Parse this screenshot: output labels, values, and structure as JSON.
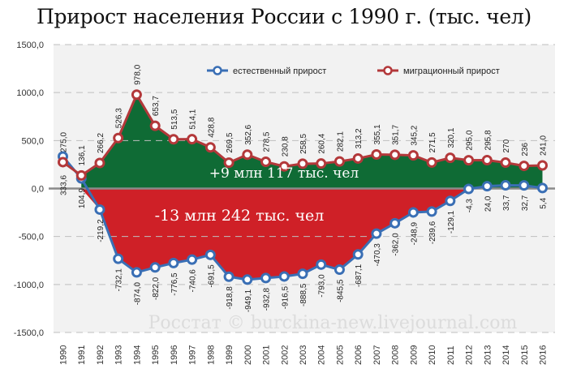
{
  "title": "Прирост населения России с 1990 г. (тыс. чел)",
  "watermark": "Росстат © burckina-new.livejournal.com",
  "annotations": {
    "positive": "+9 млн 117 тыс. чел",
    "negative": "-13 млн 242 тыс. чел"
  },
  "legend": {
    "natural": "естественный прирост",
    "migration": "миграционный прирост"
  },
  "colors": {
    "natural_line": "#3a6fb5",
    "migration_line": "#b3383a",
    "positive_fill": "#0f6b35",
    "negative_fill": "#cf2027",
    "plot_bg": "#f2f2f2",
    "grid": "#bfbfbf"
  },
  "chart_data": {
    "type": "line",
    "title": "Прирост населения России с 1990 г. (тыс. чел)",
    "xlabel": "",
    "ylabel": "",
    "ylim": [
      -1500,
      1500
    ],
    "yticks": [
      "1500,0",
      "1000,0",
      "500,0",
      "0,0",
      "-500,0",
      "-1000,0",
      "-1500,0"
    ],
    "ytick_values": [
      1500,
      1000,
      500,
      0,
      -500,
      -1000,
      -1500
    ],
    "grid": true,
    "legend_position": "top-right",
    "categories": [
      "1990",
      "1991",
      "1992",
      "1993",
      "1994",
      "1995",
      "1996",
      "1997",
      "1998",
      "1999",
      "2000",
      "2001",
      "2002",
      "2003",
      "2004",
      "2005",
      "2006",
      "2007",
      "2008",
      "2009",
      "2010",
      "2011",
      "2012",
      "2013",
      "2014",
      "2015",
      "2016"
    ],
    "series": [
      {
        "name": "естественный прирост",
        "values": [
          333.6,
          104.9,
          -219.2,
          -732.1,
          -874.0,
          -822.0,
          -776.5,
          -740.6,
          -691.5,
          -918.8,
          -949.1,
          -932.8,
          -916.5,
          -888.5,
          -793.0,
          -845.5,
          -687.1,
          -470.3,
          -362.0,
          -248.9,
          -239.6,
          -129.1,
          -4.3,
          24.0,
          33.7,
          32.7,
          5.4
        ],
        "labels": [
          "333,6",
          "104,9",
          "-219,2",
          "-732,1",
          "-874,0",
          "-822,0",
          "-776,5",
          "-740,6",
          "-691,5",
          "-918,8",
          "-949,1",
          "-932,8",
          "-916,5",
          "-888,5",
          "-793,0",
          "-845,5",
          "-687,1",
          "-470,3",
          "-362,0",
          "-248,9",
          "-239,6",
          "-129,1",
          "-4,3",
          "24,0",
          "33,7",
          "32,7",
          "5,4"
        ]
      },
      {
        "name": "миграционный прирост",
        "values": [
          275.0,
          136.1,
          266.2,
          526.3,
          978.0,
          653.7,
          513.5,
          514.1,
          428.8,
          269.5,
          352.6,
          278.5,
          230.8,
          258.5,
          260.4,
          282.1,
          313.2,
          355.1,
          351.7,
          345.2,
          271.5,
          320.1,
          295.0,
          295.8,
          270,
          236,
          241.0
        ],
        "labels": [
          "275,0",
          "136,1",
          "266,2",
          "526,3",
          "978,0",
          "653,7",
          "513,5",
          "514,1",
          "428,8",
          "269,5",
          "352,6",
          "278,5",
          "230,8",
          "258,5",
          "260,4",
          "282,1",
          "313,2",
          "355,1",
          "351,7",
          "345,2",
          "271,5",
          "320,1",
          "295,0",
          "295,8",
          "270",
          "236",
          "241,0"
        ]
      }
    ],
    "annotations": [
      "+9 млн 117 тыс. чел",
      "-13 млн 242 тыс. чел"
    ]
  }
}
